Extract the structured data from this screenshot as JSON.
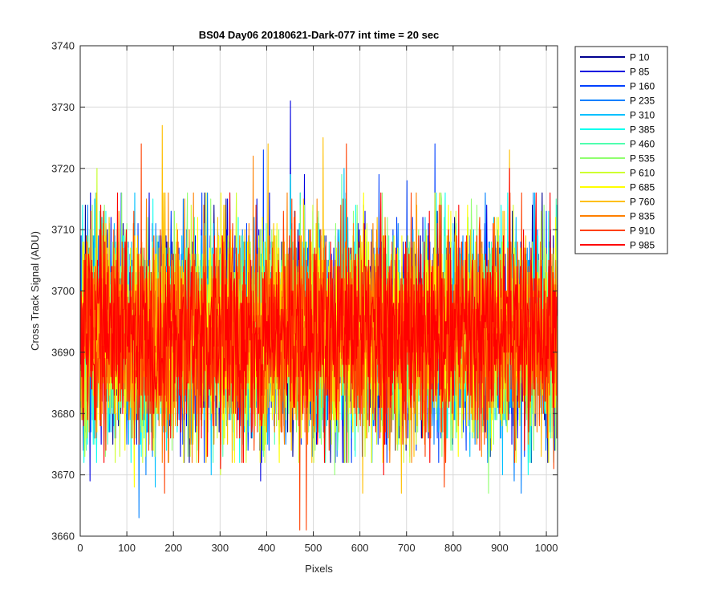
{
  "chart_data": {
    "type": "line",
    "title": "BS04 Day06 20180621-Dark-077 int time = 20 sec",
    "xlabel": "Pixels",
    "ylabel": "Cross Track Signal (ADU)",
    "xlim": [
      0,
      1024
    ],
    "ylim": [
      3660,
      3740
    ],
    "x_ticks": [
      "0",
      "100",
      "200",
      "300",
      "400",
      "500",
      "600",
      "700",
      "800",
      "900",
      "1000"
    ],
    "y_ticks": [
      "3660",
      "3670",
      "3680",
      "3690",
      "3700",
      "3710",
      "3720",
      "3730",
      "3740"
    ],
    "grid": true,
    "legend_position": "outside right, top",
    "x_points": 1024,
    "noise_mean": 3693,
    "noise_typical_range": [
      3675,
      3712
    ],
    "series": [
      {
        "name": "P 10",
        "color": "#00008f",
        "extremes": []
      },
      {
        "name": "P 85",
        "color": "#0000e0",
        "extremes": [
          [
            450,
            3731
          ],
          [
            386,
            3669
          ],
          [
            20,
            3669
          ],
          [
            480,
            3719
          ]
        ]
      },
      {
        "name": "P 160",
        "color": "#0040ff",
        "extremes": [
          [
            760,
            3724
          ],
          [
            392,
            3723
          ],
          [
            640,
            3719
          ],
          [
            700,
            3718
          ]
        ]
      },
      {
        "name": "P 235",
        "color": "#0080ff",
        "extremes": [
          [
            125,
            3663
          ],
          [
            140,
            3670
          ],
          [
            945,
            3667
          ],
          [
            930,
            3669
          ]
        ]
      },
      {
        "name": "P 310",
        "color": "#00c0ff",
        "extremes": [
          [
            565,
            3720
          ],
          [
            280,
            3670
          ],
          [
            160,
            3668
          ],
          [
            905,
            3670
          ]
        ]
      },
      {
        "name": "P 385",
        "color": "#10ffef",
        "extremes": [
          [
            450,
            3719
          ],
          [
            960,
            3670
          ],
          [
            390,
            3674
          ]
        ]
      },
      {
        "name": "P 460",
        "color": "#50ffaf",
        "extremes": [
          [
            840,
            3676
          ],
          [
            230,
            3676
          ],
          [
            560,
            3719
          ]
        ]
      },
      {
        "name": "P 535",
        "color": "#90ff6f",
        "extremes": [
          [
            875,
            3667
          ],
          [
            545,
            3670
          ],
          [
            35,
            3720
          ]
        ]
      },
      {
        "name": "P 610",
        "color": "#cfff30",
        "extremes": [
          [
            35,
            3720
          ],
          [
            300,
            3670
          ],
          [
            500,
            3672
          ]
        ]
      },
      {
        "name": "P 685",
        "color": "#ffff00",
        "extremes": [
          [
            115,
            3668
          ],
          [
            810,
            3673
          ],
          [
            760,
            3716
          ]
        ]
      },
      {
        "name": "P 760",
        "color": "#ffbf00",
        "extremes": [
          [
            175,
            3727
          ],
          [
            520,
            3725
          ],
          [
            605,
            3667
          ],
          [
            688,
            3667
          ],
          [
            920,
            3723
          ],
          [
            402,
            3724
          ]
        ]
      },
      {
        "name": "P 835",
        "color": "#ff8000",
        "extremes": [
          [
            370,
            3722
          ],
          [
            710,
            3672
          ],
          [
            820,
            3681
          ],
          [
            250,
            3680
          ]
        ]
      },
      {
        "name": "P 910",
        "color": "#ff4000",
        "extremes": [
          [
            130,
            3724
          ],
          [
            470,
            3661
          ],
          [
            484,
            3661
          ],
          [
            570,
            3724
          ],
          [
            180,
            3667
          ],
          [
            1015,
            3671
          ],
          [
            780,
            3668
          ]
        ]
      },
      {
        "name": "P 985",
        "color": "#ff0000",
        "extremes": [
          [
            920,
            3720
          ],
          [
            300,
            3671
          ],
          [
            650,
            3670
          ],
          [
            50,
            3672
          ]
        ]
      }
    ]
  }
}
